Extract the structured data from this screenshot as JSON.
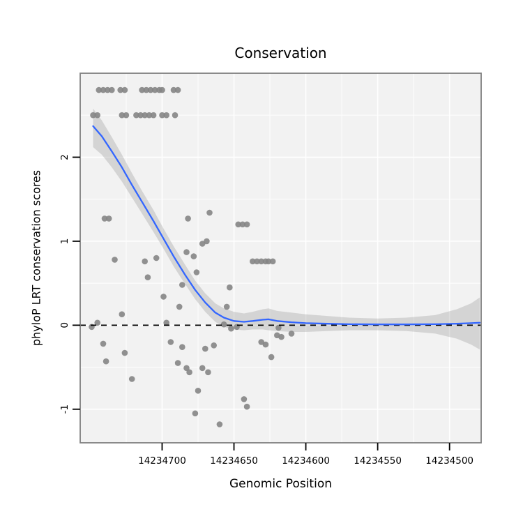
{
  "chart_data": {
    "type": "scatter",
    "title": "Conservation",
    "xlabel": "Genomic Position",
    "ylabel": "phyloP LRT conservation scores",
    "x_axis_reversed": true,
    "x_range": [
      14234757,
      14234478
    ],
    "y_range": [
      -1.4,
      3.0
    ],
    "x_ticks": [
      14234700,
      14234650,
      14234600,
      14234550,
      14234500
    ],
    "y_ticks": [
      -1,
      0,
      1,
      2
    ],
    "hline_y": 0,
    "colors": {
      "panel_bg": "#F2F2F2",
      "grid": "#FFFFFF",
      "border": "#7F7F7F",
      "point": "#858585",
      "smooth_line": "#3366FF",
      "ribbon": "#9E9E9E",
      "hline": "#000000",
      "tick": "#000000",
      "text": "#000000"
    },
    "points": [
      [
        14234744,
        2.8
      ],
      [
        14234741,
        2.8
      ],
      [
        14234738,
        2.8
      ],
      [
        14234735,
        2.8
      ],
      [
        14234729,
        2.8
      ],
      [
        14234726,
        2.8
      ],
      [
        14234714,
        2.8
      ],
      [
        14234711,
        2.8
      ],
      [
        14234708,
        2.8
      ],
      [
        14234705,
        2.8
      ],
      [
        14234702,
        2.8
      ],
      [
        14234700,
        2.8
      ],
      [
        14234692,
        2.8
      ],
      [
        14234689,
        2.8
      ],
      [
        14234748,
        2.5
      ],
      [
        14234745,
        2.5
      ],
      [
        14234728,
        2.5
      ],
      [
        14234725,
        2.5
      ],
      [
        14234718,
        2.5
      ],
      [
        14234715,
        2.5
      ],
      [
        14234712,
        2.5
      ],
      [
        14234709,
        2.5
      ],
      [
        14234706,
        2.5
      ],
      [
        14234700,
        2.5
      ],
      [
        14234697,
        2.5
      ],
      [
        14234691,
        2.5
      ],
      [
        14234740,
        1.27
      ],
      [
        14234737,
        1.27
      ],
      [
        14234733,
        0.78
      ],
      [
        14234749,
        -0.02
      ],
      [
        14234745,
        0.03
      ],
      [
        14234741,
        -0.22
      ],
      [
        14234739,
        -0.43
      ],
      [
        14234728,
        0.13
      ],
      [
        14234726,
        -0.33
      ],
      [
        14234721,
        -0.64
      ],
      [
        14234712,
        0.76
      ],
      [
        14234710,
        0.57
      ],
      [
        14234704,
        0.8
      ],
      [
        14234699,
        0.34
      ],
      [
        14234697,
        0.03
      ],
      [
        14234694,
        -0.2
      ],
      [
        14234689,
        -0.45
      ],
      [
        14234688,
        0.22
      ],
      [
        14234686,
        0.48
      ],
      [
        14234686,
        -0.26
      ],
      [
        14234683,
        0.87
      ],
      [
        14234683,
        -0.51
      ],
      [
        14234682,
        1.27
      ],
      [
        14234681,
        -0.56
      ],
      [
        14234678,
        0.82
      ],
      [
        14234677,
        -1.05
      ],
      [
        14234676,
        0.63
      ],
      [
        14234675,
        -0.78
      ],
      [
        14234672,
        0.97
      ],
      [
        14234672,
        -0.51
      ],
      [
        14234670,
        -0.28
      ],
      [
        14234669,
        1.0
      ],
      [
        14234668,
        -0.56
      ],
      [
        14234667,
        1.34
      ],
      [
        14234664,
        -0.24
      ],
      [
        14234660,
        -1.18
      ],
      [
        14234657,
        0.01
      ],
      [
        14234655,
        0.22
      ],
      [
        14234653,
        0.45
      ],
      [
        14234652,
        -0.04
      ],
      [
        14234648,
        -0.02
      ],
      [
        14234647,
        1.2
      ],
      [
        14234644,
        1.2
      ],
      [
        14234641,
        1.2
      ],
      [
        14234643,
        -0.88
      ],
      [
        14234641,
        -0.97
      ],
      [
        14234637,
        0.76
      ],
      [
        14234634,
        0.76
      ],
      [
        14234631,
        0.76
      ],
      [
        14234628,
        0.76
      ],
      [
        14234626,
        0.76
      ],
      [
        14234623,
        0.76
      ],
      [
        14234631,
        -0.2
      ],
      [
        14234628,
        -0.23
      ],
      [
        14234624,
        -0.38
      ],
      [
        14234620,
        -0.12
      ],
      [
        14234619,
        -0.03
      ],
      [
        14234617,
        -0.14
      ],
      [
        14234610,
        -0.1
      ]
    ],
    "smooth_line": [
      [
        14234748,
        2.37
      ],
      [
        14234742,
        2.25
      ],
      [
        14234735,
        2.07
      ],
      [
        14234728,
        1.88
      ],
      [
        14234721,
        1.67
      ],
      [
        14234714,
        1.47
      ],
      [
        14234706,
        1.24
      ],
      [
        14234699,
        1.03
      ],
      [
        14234692,
        0.82
      ],
      [
        14234684,
        0.6
      ],
      [
        14234677,
        0.42
      ],
      [
        14234670,
        0.27
      ],
      [
        14234663,
        0.15
      ],
      [
        14234657,
        0.09
      ],
      [
        14234650,
        0.05
      ],
      [
        14234643,
        0.04
      ],
      [
        14234637,
        0.05
      ],
      [
        14234630,
        0.065
      ],
      [
        14234626,
        0.07
      ],
      [
        14234620,
        0.05
      ],
      [
        14234610,
        0.035
      ],
      [
        14234600,
        0.025
      ],
      [
        14234585,
        0.018
      ],
      [
        14234570,
        0.012
      ],
      [
        14234550,
        0.01
      ],
      [
        14234530,
        0.01
      ],
      [
        14234510,
        0.012
      ],
      [
        14234495,
        0.018
      ],
      [
        14234485,
        0.025
      ],
      [
        14234479,
        0.03
      ]
    ],
    "ribbon": [
      [
        14234748,
        2.12,
        2.58
      ],
      [
        14234742,
        2.03,
        2.44
      ],
      [
        14234735,
        1.88,
        2.24
      ],
      [
        14234728,
        1.71,
        2.03
      ],
      [
        14234721,
        1.52,
        1.81
      ],
      [
        14234714,
        1.33,
        1.6
      ],
      [
        14234706,
        1.11,
        1.37
      ],
      [
        14234699,
        0.91,
        1.15
      ],
      [
        14234692,
        0.7,
        0.94
      ],
      [
        14234684,
        0.49,
        0.72
      ],
      [
        14234677,
        0.31,
        0.53
      ],
      [
        14234670,
        0.16,
        0.38
      ],
      [
        14234663,
        0.04,
        0.26
      ],
      [
        14234657,
        -0.02,
        0.2
      ],
      [
        14234650,
        -0.05,
        0.16
      ],
      [
        14234643,
        -0.06,
        0.14
      ],
      [
        14234637,
        -0.05,
        0.16
      ],
      [
        14234630,
        -0.05,
        0.19
      ],
      [
        14234626,
        -0.06,
        0.2
      ],
      [
        14234620,
        -0.07,
        0.17
      ],
      [
        14234610,
        -0.08,
        0.15
      ],
      [
        14234600,
        -0.08,
        0.13
      ],
      [
        14234585,
        -0.07,
        0.11
      ],
      [
        14234570,
        -0.06,
        0.09
      ],
      [
        14234550,
        -0.06,
        0.08
      ],
      [
        14234530,
        -0.07,
        0.09
      ],
      [
        14234510,
        -0.1,
        0.12
      ],
      [
        14234495,
        -0.16,
        0.19
      ],
      [
        14234485,
        -0.23,
        0.26
      ],
      [
        14234479,
        -0.29,
        0.33
      ]
    ]
  }
}
